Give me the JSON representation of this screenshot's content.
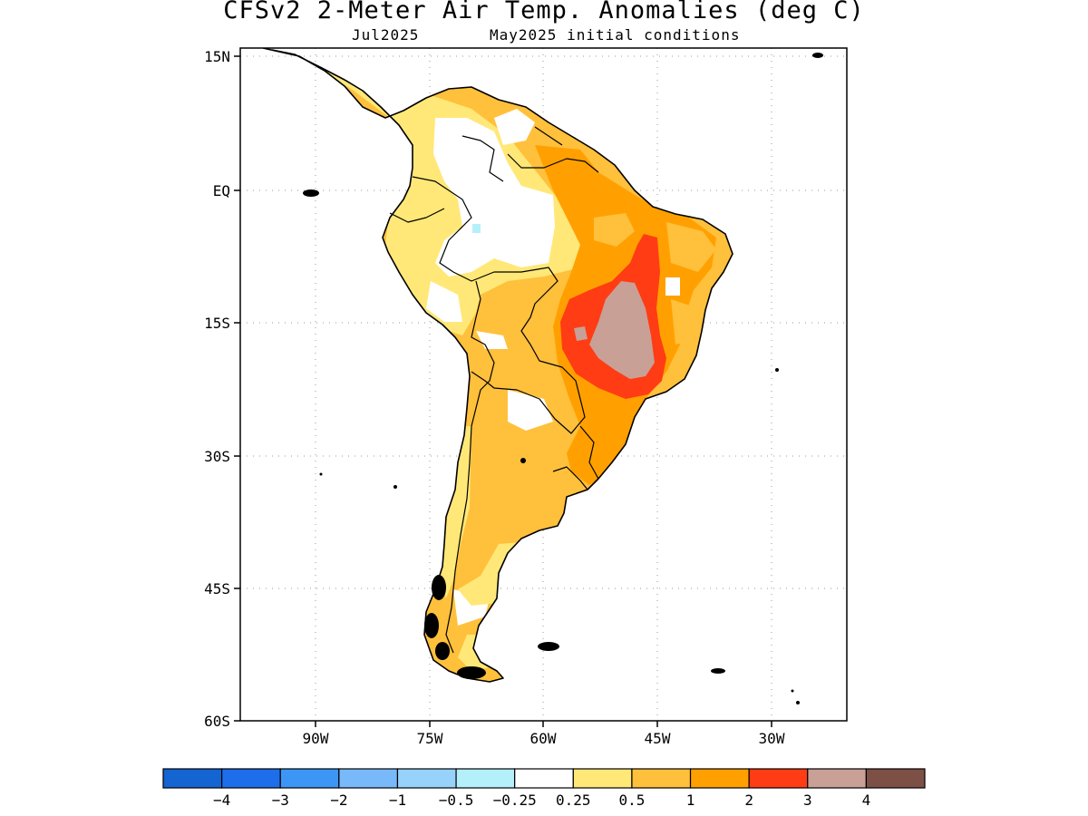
{
  "title": "CFSv2 2-Meter Air Temp. Anomalies (deg C)",
  "subtitle_left": "Jul2025",
  "subtitle_right": "May2025 initial conditions",
  "axes": {
    "lat_labels": [
      "15N",
      "EQ",
      "15S",
      "30S",
      "45S",
      "60S"
    ],
    "lon_labels": [
      "90W",
      "75W",
      "60W",
      "45W",
      "30W"
    ]
  },
  "colorbar": {
    "colors": [
      "#1464d2",
      "#1e6eeb",
      "#3c96f5",
      "#78b9fa",
      "#96d2fa",
      "#b4f0fa",
      "#ffffff",
      "#ffe878",
      "#ffc03c",
      "#ffa000",
      "#ff3c14",
      "#c8a096",
      "#7d5046"
    ],
    "labels": [
      "−4",
      "−3",
      "−2",
      "−1",
      "−0.5",
      "−0.25",
      "0.25",
      "0.5",
      "1",
      "2",
      "3",
      "4"
    ]
  },
  "map_data": {
    "variable": "2-meter air temperature anomaly",
    "units": "deg C",
    "lat_range": [
      -60,
      15
    ],
    "lon_range": [
      -99,
      -29
    ],
    "regions": [
      {
        "name": "central-brazil-hotspot",
        "anomaly_bin": "3 to 4"
      },
      {
        "name": "central-brazil-core",
        "anomaly_bin": "2 to 3"
      },
      {
        "name": "brazil-plateau",
        "anomaly_bin": "1 to 2"
      },
      {
        "name": "southern-cone",
        "anomaly_bin": "0.5 to 1"
      },
      {
        "name": "amazon-basin",
        "anomaly_bin": "-0.25 to 0.25"
      }
    ]
  }
}
